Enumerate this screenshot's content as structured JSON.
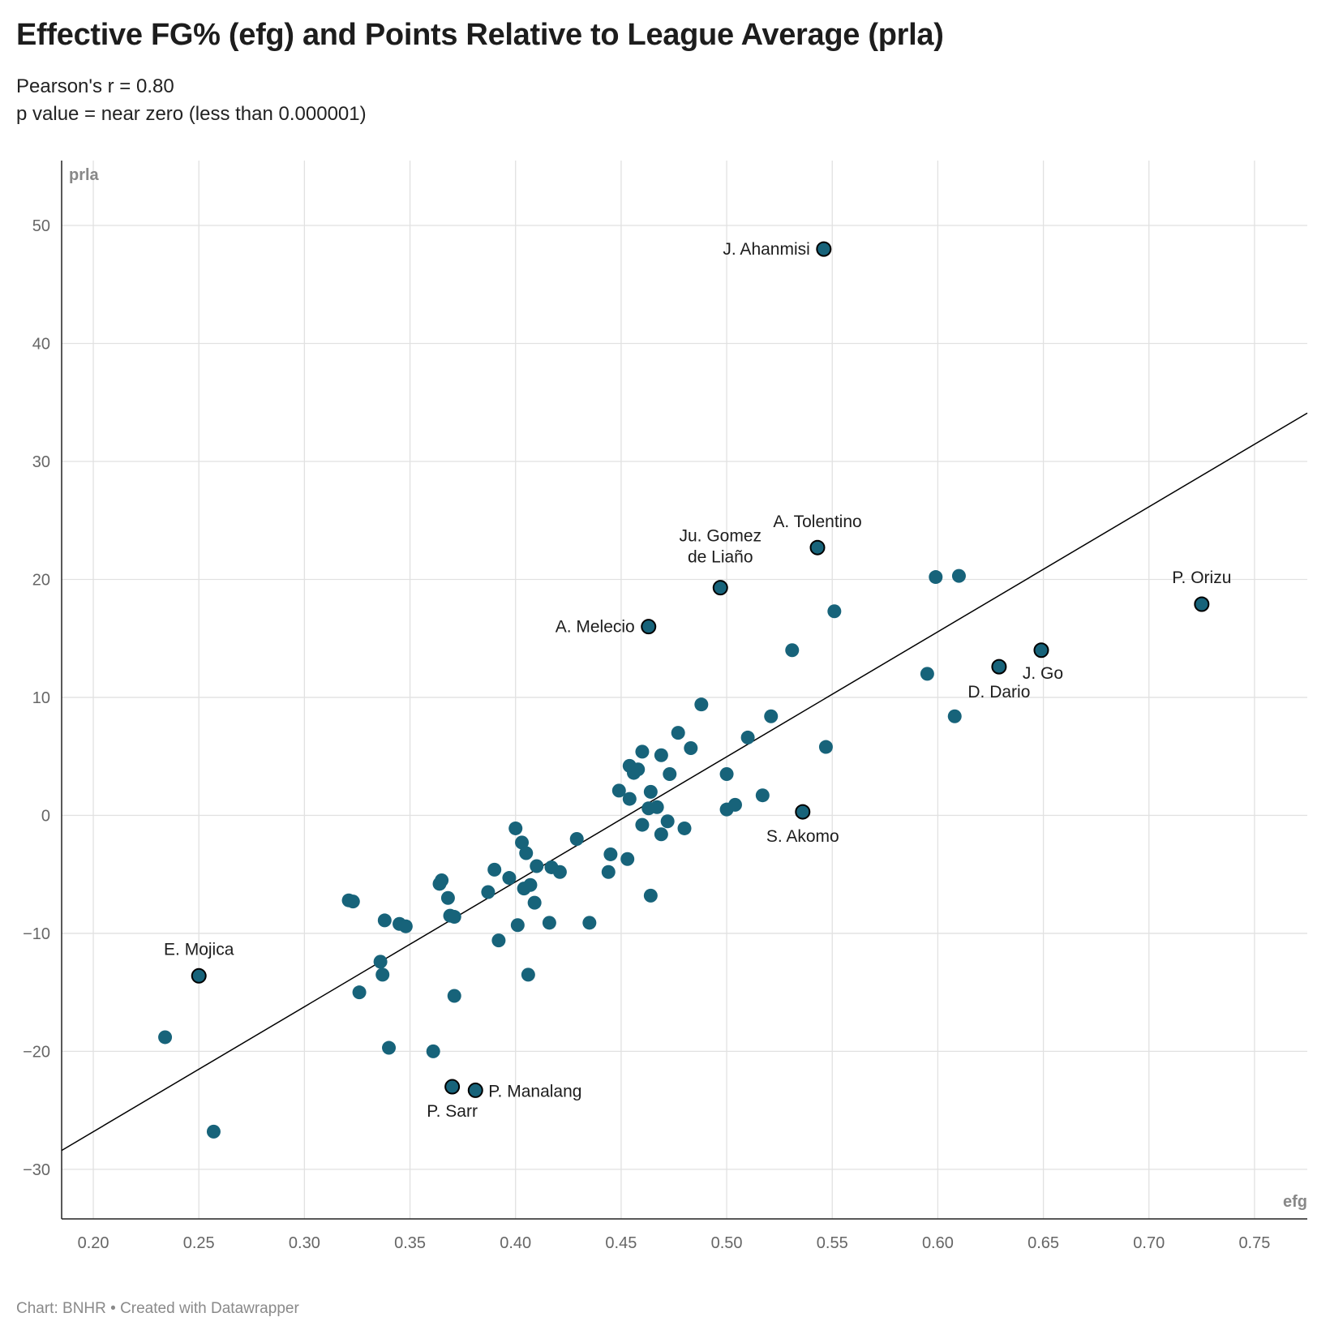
{
  "title": "Effective FG% (efg) and Points Relative to League Average (prla)",
  "subtitle": [
    "Pearson's r = 0.80",
    "p value = near zero (less than 0.000001)"
  ],
  "footer": "Chart: BNHR • Created with Datawrapper",
  "colors": {
    "point": "#17637a",
    "point_highlight_stroke": "#000000",
    "trend_line": "#000000",
    "grid": "#e1e1e1",
    "axis": "#222222"
  },
  "chart_data": {
    "type": "scatter",
    "xlabel": "efg",
    "ylabel": "prla",
    "xlim": [
      0.185,
      0.775
    ],
    "ylim": [
      -34.2,
      55.5
    ],
    "x_ticks": [
      0.2,
      0.25,
      0.3,
      0.35,
      0.4,
      0.45,
      0.5,
      0.55,
      0.6,
      0.65,
      0.7,
      0.75
    ],
    "x_tick_labels": [
      "0.20",
      "0.25",
      "0.30",
      "0.35",
      "0.40",
      "0.45",
      "0.50",
      "0.55",
      "0.60",
      "0.65",
      "0.70",
      "0.75"
    ],
    "y_ticks": [
      50,
      40,
      30,
      20,
      10,
      0,
      -10,
      -20,
      -30
    ],
    "y_tick_labels": [
      "50",
      "40",
      "30",
      "20",
      "10",
      "0",
      "−10",
      "−20",
      "−30"
    ],
    "grid": true,
    "trend_line": {
      "x": [
        0.185,
        0.775
      ],
      "y": [
        -28.4,
        34.1
      ]
    },
    "points": [
      {
        "x": 0.234,
        "y": -18.8
      },
      {
        "x": 0.257,
        "y": -26.8
      },
      {
        "x": 0.321,
        "y": -7.2
      },
      {
        "x": 0.323,
        "y": -7.3
      },
      {
        "x": 0.326,
        "y": -15.0
      },
      {
        "x": 0.336,
        "y": -12.4
      },
      {
        "x": 0.337,
        "y": -13.5
      },
      {
        "x": 0.338,
        "y": -8.9
      },
      {
        "x": 0.34,
        "y": -19.7
      },
      {
        "x": 0.345,
        "y": -9.2
      },
      {
        "x": 0.348,
        "y": -9.4
      },
      {
        "x": 0.361,
        "y": -20.0
      },
      {
        "x": 0.364,
        "y": -5.8
      },
      {
        "x": 0.365,
        "y": -5.5
      },
      {
        "x": 0.368,
        "y": -7.0
      },
      {
        "x": 0.369,
        "y": -8.5
      },
      {
        "x": 0.371,
        "y": -8.6
      },
      {
        "x": 0.371,
        "y": -15.3
      },
      {
        "x": 0.387,
        "y": -6.5
      },
      {
        "x": 0.39,
        "y": -4.6
      },
      {
        "x": 0.392,
        "y": -10.6
      },
      {
        "x": 0.397,
        "y": -5.3
      },
      {
        "x": 0.4,
        "y": -1.1
      },
      {
        "x": 0.401,
        "y": -9.3
      },
      {
        "x": 0.403,
        "y": -2.3
      },
      {
        "x": 0.404,
        "y": -6.2
      },
      {
        "x": 0.405,
        "y": -3.2
      },
      {
        "x": 0.406,
        "y": -13.5
      },
      {
        "x": 0.407,
        "y": -5.9
      },
      {
        "x": 0.409,
        "y": -7.4
      },
      {
        "x": 0.41,
        "y": -4.3
      },
      {
        "x": 0.416,
        "y": -9.1
      },
      {
        "x": 0.417,
        "y": -4.4
      },
      {
        "x": 0.421,
        "y": -4.8
      },
      {
        "x": 0.429,
        "y": -2.0
      },
      {
        "x": 0.435,
        "y": -9.1
      },
      {
        "x": 0.444,
        "y": -4.8
      },
      {
        "x": 0.445,
        "y": -3.3
      },
      {
        "x": 0.449,
        "y": 2.1
      },
      {
        "x": 0.453,
        "y": -3.7
      },
      {
        "x": 0.454,
        "y": 4.2
      },
      {
        "x": 0.454,
        "y": 1.4
      },
      {
        "x": 0.456,
        "y": 3.6
      },
      {
        "x": 0.458,
        "y": 3.9
      },
      {
        "x": 0.46,
        "y": 5.4
      },
      {
        "x": 0.46,
        "y": -0.8
      },
      {
        "x": 0.463,
        "y": 0.6
      },
      {
        "x": 0.464,
        "y": 2.0
      },
      {
        "x": 0.464,
        "y": -6.8
      },
      {
        "x": 0.467,
        "y": 0.7
      },
      {
        "x": 0.469,
        "y": 5.1
      },
      {
        "x": 0.469,
        "y": -1.6
      },
      {
        "x": 0.472,
        "y": -0.5
      },
      {
        "x": 0.473,
        "y": 3.5
      },
      {
        "x": 0.477,
        "y": 7.0
      },
      {
        "x": 0.48,
        "y": -1.1
      },
      {
        "x": 0.483,
        "y": 5.7
      },
      {
        "x": 0.488,
        "y": 9.4
      },
      {
        "x": 0.5,
        "y": 3.5
      },
      {
        "x": 0.5,
        "y": 0.5
      },
      {
        "x": 0.504,
        "y": 0.9
      },
      {
        "x": 0.51,
        "y": 6.6
      },
      {
        "x": 0.517,
        "y": 1.7
      },
      {
        "x": 0.521,
        "y": 8.4
      },
      {
        "x": 0.531,
        "y": 14.0
      },
      {
        "x": 0.547,
        "y": 5.8
      },
      {
        "x": 0.551,
        "y": 17.3
      },
      {
        "x": 0.595,
        "y": 12.0
      },
      {
        "x": 0.599,
        "y": 20.2
      },
      {
        "x": 0.608,
        "y": 8.4
      },
      {
        "x": 0.61,
        "y": 20.3
      }
    ],
    "highlighted": [
      {
        "label": "J. Ahanmisi",
        "x": 0.546,
        "y": 48.0
      },
      {
        "label": "A. Tolentino",
        "x": 0.543,
        "y": 22.7
      },
      {
        "label": [
          "Ju. Gomez",
          "de Liaño"
        ],
        "x": 0.497,
        "y": 19.3
      },
      {
        "label": "A. Melecio",
        "x": 0.463,
        "y": 16.0
      },
      {
        "label": "P. Orizu",
        "x": 0.725,
        "y": 17.9
      },
      {
        "label": "J. Go",
        "x": 0.649,
        "y": 14.0
      },
      {
        "label": "D. Dario",
        "x": 0.629,
        "y": 12.6
      },
      {
        "label": "S. Akomo",
        "x": 0.536,
        "y": 0.3
      },
      {
        "label": "E. Mojica",
        "x": 0.25,
        "y": -13.6
      },
      {
        "label": "P. Sarr",
        "x": 0.37,
        "y": -23.0
      },
      {
        "label": "P. Manalang",
        "x": 0.381,
        "y": -23.3
      }
    ]
  }
}
